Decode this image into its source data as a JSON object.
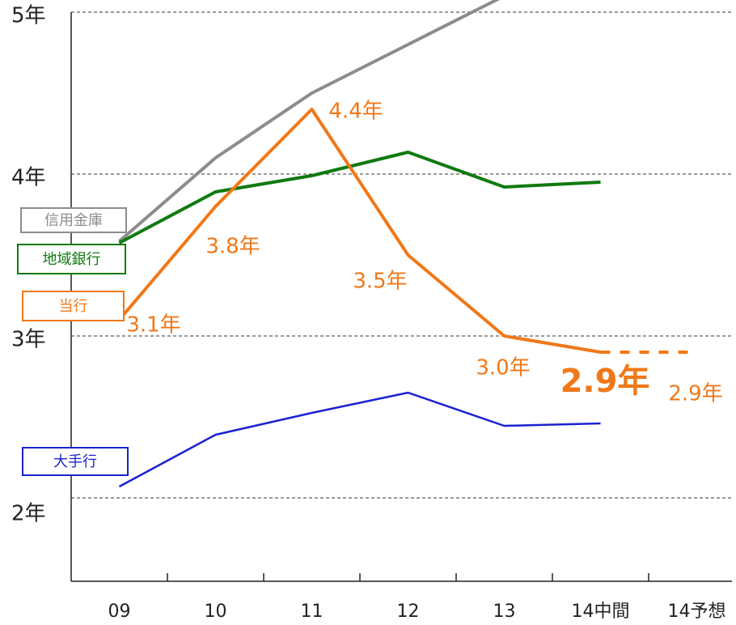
{
  "chart_data": {
    "type": "line",
    "categories": [
      "09",
      "10",
      "11",
      "12",
      "13",
      "14中間",
      "14予想"
    ],
    "series": [
      {
        "name": "信用金庫",
        "color": "#8c8c8c",
        "values": [
          3.585,
          4.1,
          4.5,
          4.8,
          5.1,
          null,
          null
        ]
      },
      {
        "name": "地域銀行",
        "color": "#107a10",
        "values": [
          3.575,
          3.89,
          3.99,
          4.135,
          3.92,
          3.95,
          null
        ]
      },
      {
        "name": "当行",
        "color": "#f07818",
        "values": [
          3.1,
          3.8,
          4.4,
          3.5,
          3.0,
          2.9,
          null
        ],
        "value_labels": [
          "3.1年",
          "3.8年",
          "4.4年",
          "3.5年",
          "3.0年",
          "2.9年",
          null
        ]
      },
      {
        "color": "#f07818",
        "dashed": true,
        "values": [
          null,
          null,
          null,
          null,
          null,
          2.9,
          2.9
        ],
        "value_labels": [
          null,
          null,
          null,
          null,
          null,
          null,
          "2.9年"
        ]
      },
      {
        "name": "大手行",
        "color": "#1a22d0",
        "values": [
          2.07,
          2.39,
          2.525,
          2.65,
          2.445,
          2.46,
          null
        ]
      }
    ],
    "ylim": [
      1.485,
      5
    ],
    "yticks": [
      {
        "value": 2,
        "label": "2年"
      },
      {
        "value": 3,
        "label": "3年"
      },
      {
        "value": 4,
        "label": "4年"
      },
      {
        "value": 5,
        "label": "5年"
      }
    ],
    "grid": true
  }
}
